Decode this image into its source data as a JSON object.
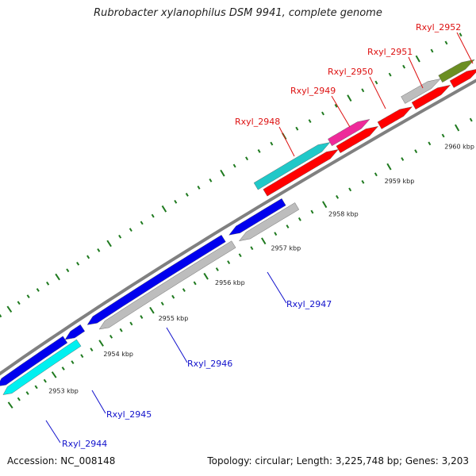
{
  "title": "Rubrobacter xylanophilus DSM 9941, complete genome",
  "footer": {
    "accession": "Accession: NC_008148",
    "stats": "Topology: circular; Length: 3,225,748 bp; Genes: 3,203"
  },
  "colors": {
    "backbone": "#808080",
    "tick": "#1f7a1f",
    "forward_label": "#dd1111",
    "reverse_label": "#1111cc",
    "red": "#ff0000",
    "magenta": "#ee2a9a",
    "cyan": "#20c8c8",
    "olive": "#6b8e23",
    "blue": "#0000ee",
    "gray": "#bdbdbd",
    "aqua": "#00f0f0"
  },
  "scale_labels": [
    "2953 kbp",
    "2954 kbp",
    "2955 kbp",
    "2956 kbp",
    "2957 kbp",
    "2958 kbp",
    "2959 kbp",
    "2960 kbp"
  ],
  "forward_genes": [
    {
      "label": "Rxyl_2948",
      "color": "cyan"
    },
    {
      "label": "Rxyl_2949",
      "color": "magenta"
    },
    {
      "label": "Rxyl_2950",
      "color": "red"
    },
    {
      "label": "Rxyl_2951",
      "color": "gray"
    },
    {
      "label": "Rxyl_2952",
      "color": "olive"
    }
  ],
  "reverse_genes": [
    {
      "label": "Rxyl_2944",
      "color": "aqua"
    },
    {
      "label": "Rxyl_2945",
      "color": "blue"
    },
    {
      "label": "Rxyl_2946",
      "color": "blue"
    },
    {
      "label": "Rxyl_2947",
      "color": "blue"
    }
  ]
}
